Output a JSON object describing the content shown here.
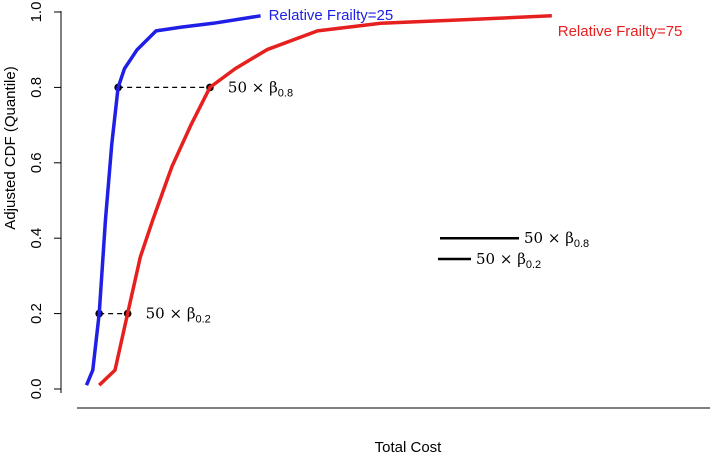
{
  "chart_data": {
    "type": "line",
    "title": "",
    "xlabel": "Total Cost",
    "ylabel": "Adjusted CDF (Quantile)",
    "ylim": [
      0.0,
      1.0
    ],
    "yticks": [
      "0.0",
      "0.2",
      "0.4",
      "0.6",
      "0.8",
      "1.0"
    ],
    "xticks_labeled": false,
    "x_range_relative": [
      0.0,
      1.0
    ],
    "series": [
      {
        "name": "Relative Frailty=25",
        "label": "Relative Frailty=25",
        "color": "#1f1fe6",
        "x": [
          0.015,
          0.025,
          0.035,
          0.045,
          0.055,
          0.065,
          0.075,
          0.095,
          0.125,
          0.165,
          0.215,
          0.29
        ],
        "y": [
          0.01,
          0.05,
          0.2,
          0.45,
          0.65,
          0.8,
          0.85,
          0.9,
          0.95,
          0.96,
          0.97,
          0.99
        ]
      },
      {
        "name": "Relative Frailty=75",
        "label": "Relative Frailty=75",
        "color": "#e61f1f",
        "x": [
          0.035,
          0.06,
          0.08,
          0.1,
          0.12,
          0.15,
          0.18,
          0.21,
          0.25,
          0.3,
          0.38,
          0.48,
          0.62,
          0.75
        ],
        "y": [
          0.01,
          0.05,
          0.2,
          0.35,
          0.45,
          0.59,
          0.7,
          0.8,
          0.85,
          0.9,
          0.95,
          0.97,
          0.98,
          0.99
        ]
      }
    ],
    "annotations": [
      {
        "type": "dashed-segment",
        "y": 0.8,
        "x_from": 0.065,
        "x_to": 0.21,
        "label_prefix": "50 × β",
        "label_sub": "0.8"
      },
      {
        "type": "dashed-segment",
        "y": 0.2,
        "x_from": 0.035,
        "x_to": 0.08,
        "label_prefix": "50 × β",
        "label_sub": "0.2"
      }
    ],
    "length_legend": [
      {
        "y": 0.4,
        "length": 0.145,
        "label_prefix": "50 × β",
        "label_sub": "0.8"
      },
      {
        "y": 0.35,
        "length": 0.045,
        "label_prefix": "50 × β",
        "label_sub": "0.2"
      }
    ]
  }
}
